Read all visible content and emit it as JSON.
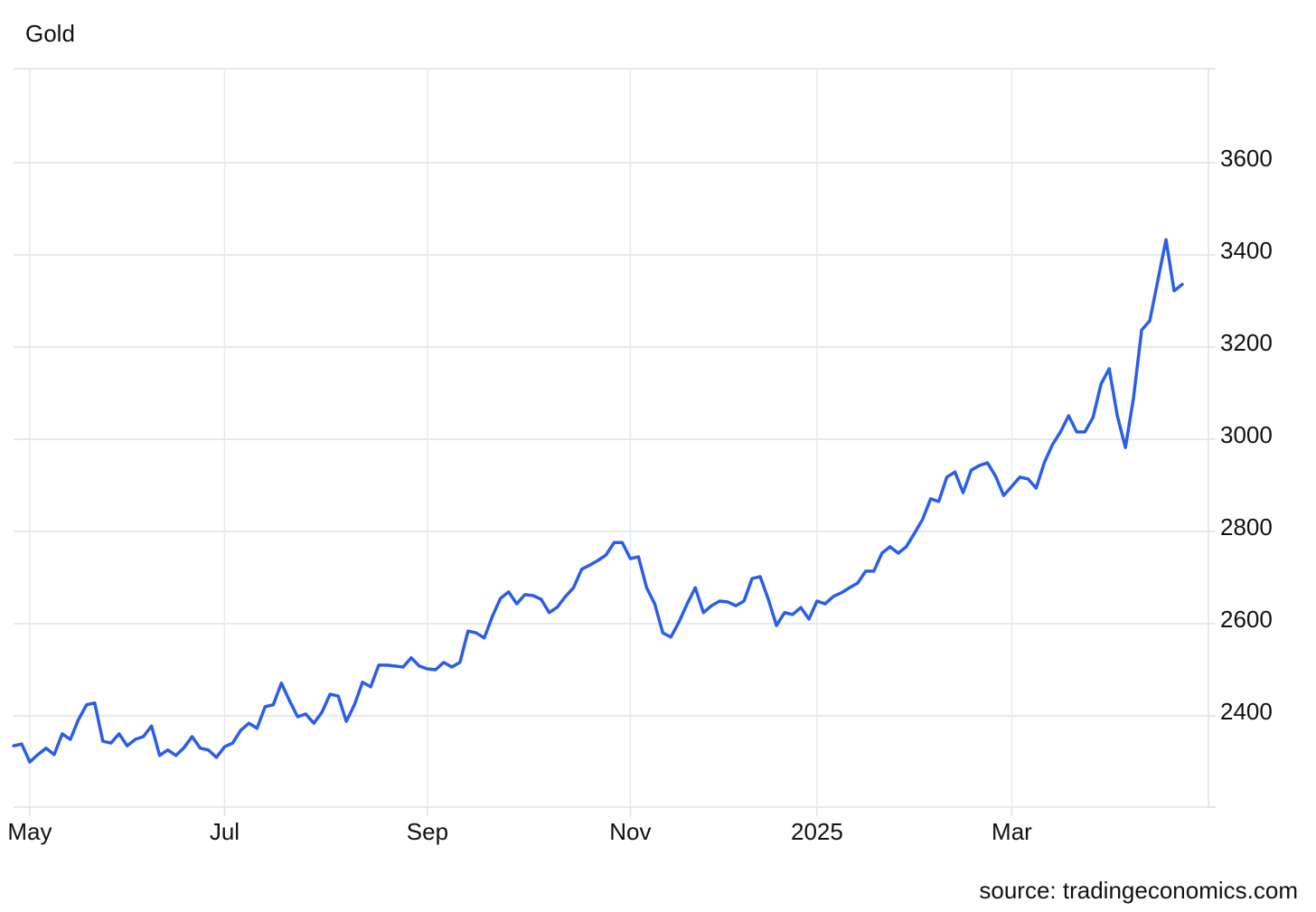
{
  "chart_data": {
    "type": "line",
    "title": "Gold",
    "source": "source: tradingeconomics.com",
    "color": "#2a5ee8",
    "grid": true,
    "ylim": [
      2200,
      3800
    ],
    "yticks": [
      2400,
      2600,
      2800,
      3000,
      3200,
      3400,
      3600
    ],
    "categories": [
      null,
      null,
      "May",
      null,
      null,
      null,
      null,
      null,
      null,
      null,
      null,
      null,
      null,
      null,
      null,
      null,
      null,
      null,
      null,
      null,
      null,
      null,
      null,
      null,
      null,
      null,
      "Jul",
      null,
      null,
      null,
      null,
      null,
      null,
      null,
      null,
      null,
      null,
      null,
      null,
      null,
      null,
      null,
      null,
      null,
      null,
      null,
      null,
      null,
      null,
      null,
      null,
      "Sep",
      null,
      null,
      null,
      null,
      null,
      null,
      null,
      null,
      null,
      null,
      null,
      null,
      null,
      null,
      null,
      null,
      null,
      null,
      null,
      null,
      null,
      null,
      null,
      null,
      "Nov",
      null,
      null,
      null,
      null,
      null,
      null,
      null,
      null,
      null,
      null,
      null,
      null,
      null,
      null,
      null,
      null,
      null,
      null,
      null,
      null,
      null,
      null,
      "2025",
      null,
      null,
      null,
      null,
      null,
      null,
      null,
      null,
      null,
      null,
      null,
      null,
      null,
      null,
      null,
      null,
      null,
      null,
      null,
      null,
      null,
      null,
      null,
      "Mar",
      null,
      null,
      null,
      null,
      null,
      null,
      null,
      null,
      null,
      null,
      null,
      null,
      null,
      null,
      null,
      null,
      null,
      null,
      null,
      null,
      null
    ],
    "values": [
      2335,
      2339,
      2300,
      2316,
      2330,
      2316,
      2361,
      2349,
      2392,
      2424,
      2428,
      2345,
      2341,
      2361,
      2335,
      2349,
      2355,
      2378,
      2314,
      2326,
      2314,
      2331,
      2355,
      2330,
      2326,
      2310,
      2333,
      2341,
      2369,
      2384,
      2373,
      2420,
      2424,
      2471,
      2433,
      2398,
      2404,
      2384,
      2408,
      2447,
      2443,
      2388,
      2424,
      2473,
      2463,
      2510,
      2510,
      2508,
      2506,
      2526,
      2508,
      2502,
      2500,
      2516,
      2506,
      2516,
      2584,
      2580,
      2569,
      2616,
      2655,
      2669,
      2643,
      2663,
      2661,
      2653,
      2624,
      2636,
      2659,
      2678,
      2718,
      2727,
      2737,
      2749,
      2776,
      2776,
      2741,
      2745,
      2678,
      2643,
      2580,
      2571,
      2604,
      2643,
      2678,
      2624,
      2639,
      2649,
      2647,
      2639,
      2649,
      2698,
      2702,
      2653,
      2596,
      2624,
      2620,
      2635,
      2610,
      2649,
      2643,
      2659,
      2667,
      2678,
      2688,
      2714,
      2714,
      2753,
      2767,
      2753,
      2767,
      2796,
      2826,
      2871,
      2865,
      2918,
      2929,
      2884,
      2933,
      2943,
      2949,
      2920,
      2878,
      2898,
      2918,
      2914,
      2894,
      2949,
      2988,
      3016,
      3051,
      3016,
      3016,
      3047,
      3120,
      3153,
      3051,
      2982,
      3090,
      3237,
      3257,
      3345,
      3433,
      3322,
      3336
    ]
  }
}
